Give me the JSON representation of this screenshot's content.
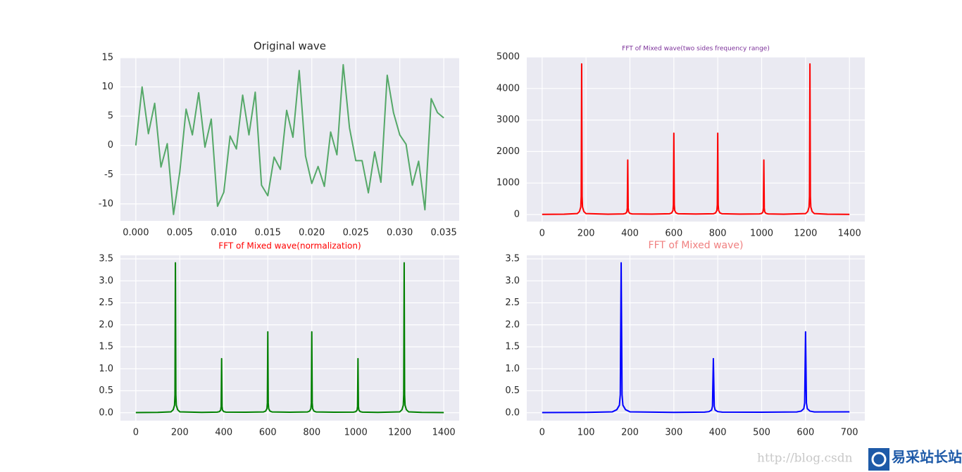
{
  "chart_data": [
    {
      "type": "line",
      "title": "Original wave",
      "title_color": "#262626",
      "x": [
        0,
        0.000714,
        0.001429,
        0.002143,
        0.002857,
        0.003571,
        0.004286,
        0.005,
        0.005714,
        0.006429,
        0.007143,
        0.007857,
        0.008571,
        0.009286,
        0.01,
        0.010714,
        0.011429,
        0.012143,
        0.012857,
        0.013571,
        0.014286,
        0.015,
        0.015714,
        0.016429,
        0.017143,
        0.017857,
        0.018571,
        0.019286,
        0.02,
        0.020714,
        0.021429,
        0.022143,
        0.022857,
        0.023571,
        0.024286,
        0.025,
        0.025714,
        0.026429,
        0.027143,
        0.027857,
        0.028571,
        0.029286,
        0.03,
        0.030714,
        0.031429,
        0.032143,
        0.032857,
        0.033571,
        0.034286,
        0.035
      ],
      "series": [
        {
          "color": "#55a868",
          "values": [
            0,
            10,
            2,
            7.2,
            -3.7,
            0.3,
            -11.8,
            -4.5,
            6.2,
            1.8,
            9,
            -0.3,
            4.5,
            -10.4,
            -8,
            1.6,
            -0.6,
            8.6,
            1.8,
            9.1,
            -6.8,
            -8.6,
            -2,
            -4.1,
            6,
            1.4,
            12.8,
            -1.8,
            -6.5,
            -3.6,
            -7,
            2.3,
            -1.6,
            13.8,
            3,
            -2.6,
            -2.6,
            -8.1,
            -1.1,
            -6.3,
            12,
            5.6,
            1.8,
            0.2,
            -6.8,
            -2.7,
            -11,
            8,
            5.6,
            4.7
          ]
        }
      ],
      "xlim": [
        -0.00175,
        0.03675
      ],
      "xticks": [
        {
          "value": 0,
          "label": "0.000"
        },
        0.005,
        {
          "value": 0.01,
          "label": "0.010"
        },
        0.015,
        {
          "value": 0.02,
          "label": "0.020"
        },
        0.025,
        {
          "value": 0.03,
          "label": "0.030"
        },
        0.035
      ],
      "ylim": [
        -12.9,
        15
      ],
      "yticks": [
        -10,
        -5,
        0,
        5,
        10,
        15
      ],
      "grid": true
    },
    {
      "type": "line",
      "title": "FFT of Mixed wave(two sides frequency range)",
      "title_color": "#7b2f99",
      "x": [
        0,
        100,
        160,
        170,
        176,
        178,
        180,
        182,
        184,
        190,
        200,
        300,
        370,
        380,
        386,
        388,
        390,
        392,
        394,
        400,
        410,
        500,
        580,
        590,
        596,
        598,
        600,
        602,
        604,
        610,
        620,
        700,
        780,
        790,
        796,
        798,
        800,
        802,
        804,
        810,
        820,
        900,
        990,
        1000,
        1006,
        1008,
        1010,
        1012,
        1014,
        1020,
        1030,
        1100,
        1200,
        1210,
        1216,
        1218,
        1220,
        1222,
        1224,
        1230,
        1240,
        1300,
        1400
      ],
      "series": [
        {
          "color": "#ff0000",
          "values": [
            5,
            12,
            30,
            96,
            239,
            574,
            4780,
            574,
            239,
            96,
            30,
            12,
            20,
            35,
            87,
            208,
            1730,
            208,
            87,
            35,
            20,
            15,
            25,
            52,
            129,
            310,
            2580,
            310,
            129,
            52,
            25,
            16,
            25,
            52,
            129,
            310,
            2580,
            310,
            129,
            52,
            25,
            15,
            20,
            35,
            87,
            208,
            1730,
            208,
            87,
            35,
            20,
            12,
            30,
            96,
            239,
            574,
            4780,
            574,
            239,
            96,
            30,
            12,
            5
          ]
        }
      ],
      "xlim": [
        -70,
        1470
      ],
      "xticks": [
        0,
        200,
        400,
        600,
        800,
        1000,
        1200,
        1400
      ],
      "ylim": [
        -223,
        5000
      ],
      "yticks": [
        0,
        1000,
        2000,
        3000,
        4000,
        5000
      ],
      "grid": true
    },
    {
      "type": "line",
      "title": "FFT of Mixed wave(normalization)",
      "title_color": "#ff0000",
      "x": [
        0,
        100,
        160,
        170,
        176,
        178,
        180,
        182,
        184,
        190,
        200,
        300,
        370,
        380,
        386,
        388,
        390,
        392,
        394,
        400,
        410,
        500,
        580,
        590,
        596,
        598,
        600,
        602,
        604,
        610,
        620,
        700,
        780,
        790,
        796,
        798,
        800,
        802,
        804,
        810,
        820,
        900,
        990,
        1000,
        1006,
        1008,
        1010,
        1012,
        1014,
        1020,
        1030,
        1100,
        1200,
        1210,
        1216,
        1218,
        1220,
        1222,
        1224,
        1230,
        1240,
        1300,
        1400
      ],
      "series": [
        {
          "color": "#008000",
          "values": [
            0.004,
            0.009,
            0.021,
            0.069,
            0.171,
            0.41,
            3.41,
            0.41,
            0.171,
            0.069,
            0.021,
            0.009,
            0.014,
            0.025,
            0.062,
            0.149,
            1.23,
            0.149,
            0.062,
            0.025,
            0.014,
            0.011,
            0.018,
            0.037,
            0.092,
            0.221,
            1.84,
            0.221,
            0.092,
            0.037,
            0.018,
            0.011,
            0.018,
            0.037,
            0.092,
            0.221,
            1.84,
            0.221,
            0.092,
            0.037,
            0.018,
            0.011,
            0.014,
            0.025,
            0.062,
            0.149,
            1.23,
            0.149,
            0.062,
            0.025,
            0.014,
            0.009,
            0.021,
            0.069,
            0.171,
            0.41,
            3.41,
            0.41,
            0.171,
            0.069,
            0.021,
            0.009,
            0.004
          ]
        }
      ],
      "xlim": [
        -70,
        1470
      ],
      "xticks": [
        0,
        200,
        400,
        600,
        800,
        1000,
        1200,
        1400
      ],
      "ylim": [
        -0.18,
        3.58
      ],
      "yticks": [
        {
          "value": 0,
          "label": "0.0"
        },
        0.5,
        {
          "value": 1,
          "label": "1.0"
        },
        1.5,
        {
          "value": 2,
          "label": "2.0"
        },
        2.5,
        {
          "value": 3,
          "label": "3.0"
        },
        3.5
      ],
      "grid": true
    },
    {
      "type": "line",
      "title": "FFT of Mixed wave)",
      "title_color": "#f08080",
      "x": [
        0,
        100,
        160,
        170,
        176,
        178,
        180,
        182,
        184,
        190,
        200,
        300,
        370,
        380,
        386,
        388,
        390,
        392,
        394,
        400,
        410,
        500,
        580,
        590,
        596,
        598,
        600,
        602,
        604,
        610,
        620,
        700
      ],
      "series": [
        {
          "color": "#0000ff",
          "values": [
            0.004,
            0.009,
            0.021,
            0.069,
            0.171,
            0.41,
            3.41,
            0.41,
            0.171,
            0.069,
            0.021,
            0.009,
            0.014,
            0.025,
            0.062,
            0.149,
            1.23,
            0.149,
            0.062,
            0.025,
            0.014,
            0.011,
            0.018,
            0.037,
            0.092,
            0.221,
            1.84,
            0.221,
            0.092,
            0.037,
            0.018,
            0.02
          ]
        }
      ],
      "xlim": [
        -35,
        735
      ],
      "xticks": [
        0,
        100,
        200,
        300,
        400,
        500,
        600,
        700
      ],
      "ylim": [
        -0.18,
        3.58
      ],
      "yticks": [
        {
          "value": 0,
          "label": "0.0"
        },
        0.5,
        {
          "value": 1,
          "label": "1.0"
        },
        1.5,
        {
          "value": 2,
          "label": "2.0"
        },
        2.5,
        {
          "value": 3,
          "label": "3.0"
        },
        3.5
      ],
      "grid": true
    }
  ],
  "watermark": {
    "url": "http://blog.csdn",
    "brand": "易采站长站"
  }
}
